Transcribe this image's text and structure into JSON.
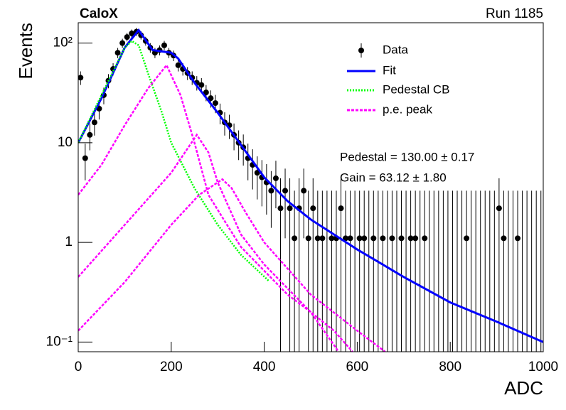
{
  "chart_data": {
    "type": "errorbar",
    "title": "CaloX",
    "subtitle": "Run 1185",
    "x_label": "ADC",
    "y_label": "Events",
    "log_y": true,
    "xlim": [
      0,
      1000
    ],
    "ylim": [
      0.08,
      160
    ],
    "xticks": [
      0,
      200,
      400,
      600,
      800,
      1000
    ],
    "yticks": [
      {
        "value": 0.1,
        "label": "10⁻¹"
      },
      1,
      10,
      {
        "value": 100,
        "label": "10²"
      }
    ],
    "legend": "upper right",
    "annotations": [
      "Pedestal = 130.00 ± 0.17",
      "Gain = 63.12 ± 1.80"
    ],
    "series": [
      {
        "name": "Data",
        "color": "#000000",
        "x": [
          5,
          15,
          25,
          35,
          45,
          55,
          65,
          75,
          85,
          95,
          105,
          115,
          125,
          135,
          145,
          155,
          165,
          175,
          185,
          195,
          205,
          215,
          225,
          235,
          245,
          255,
          265,
          275,
          285,
          295,
          305,
          315,
          325,
          335,
          345,
          355,
          365,
          375,
          385,
          395,
          405,
          415,
          425,
          435,
          445,
          455,
          465,
          475,
          485,
          495,
          505,
          515,
          525,
          535,
          545,
          555,
          565,
          575,
          585,
          595,
          605,
          615,
          625,
          635,
          645,
          655,
          665,
          675,
          685,
          695,
          705,
          715,
          725,
          735,
          745,
          755,
          765,
          775,
          785,
          795,
          805,
          815,
          825,
          835,
          845,
          855,
          865,
          875,
          885,
          895,
          905,
          915,
          925,
          935,
          945,
          955,
          965,
          975,
          985,
          995
        ],
        "values": [
          45,
          7,
          12,
          16,
          22,
          30,
          42,
          55,
          80,
          100,
          115,
          125,
          130,
          120,
          105,
          90,
          80,
          85,
          95,
          80,
          75,
          60,
          55,
          50,
          45,
          40,
          38,
          32,
          28,
          25,
          20,
          16,
          15,
          12,
          10,
          9,
          7,
          6,
          5,
          4.5,
          4,
          3.3,
          4.4,
          2.2,
          3.3,
          2.2,
          1.1,
          2.2,
          3.3,
          1.1,
          2.2,
          1.1,
          1.1,
          0,
          1.1,
          1.1,
          2.2,
          1.1,
          1.1,
          0,
          1.1,
          1.1,
          0,
          1.1,
          0,
          1.1,
          0,
          1.1,
          0,
          1.1,
          0,
          1.1,
          1.1,
          0,
          1.1,
          0,
          0,
          0,
          0,
          0,
          0,
          0,
          0,
          1.1,
          0,
          0,
          0,
          0,
          0,
          0,
          2.2,
          1.1,
          0,
          0,
          1.1,
          0,
          0,
          0,
          0,
          0
        ],
        "errors": [
          7,
          2.8,
          3.6,
          4.2,
          4.9,
          5.7,
          6.8,
          7.8,
          9.4,
          10.5,
          11.2,
          11.7,
          12,
          11.5,
          10.7,
          9.9,
          9.4,
          9.7,
          10.2,
          9.4,
          9.1,
          8.1,
          7.8,
          7.4,
          7,
          6.6,
          6.5,
          5.9,
          5.5,
          5.2,
          4.7,
          4.2,
          4.1,
          3.6,
          3.3,
          3.1,
          2.8,
          2.6,
          2.3,
          2.2,
          2.1,
          1.9,
          2.2,
          2.2,
          2.2,
          2.2,
          2.2,
          2.2,
          2.2,
          2.2,
          2.2,
          2.2,
          2.2,
          3.3,
          2.2,
          2.2,
          2.2,
          2.2,
          2.2,
          3.3,
          2.2,
          2.2,
          3.3,
          2.2,
          3.3,
          2.2,
          3.3,
          2.2,
          3.3,
          2.2,
          3.3,
          2.2,
          2.2,
          3.3,
          2.2,
          3.3,
          3.3,
          3.3,
          3.3,
          3.3,
          3.3,
          3.3,
          3.3,
          2.2,
          3.3,
          3.3,
          3.3,
          3.3,
          3.3,
          3.3,
          2.2,
          2.2,
          3.3,
          3.3,
          2.2,
          3.3,
          3.3,
          3.3,
          3.3,
          3.3
        ]
      },
      {
        "name": "Fit",
        "color": "#0000ff",
        "style": "solid",
        "x": [
          0,
          50,
          100,
          130,
          160,
          200,
          215,
          250,
          300,
          350,
          400,
          450,
          500,
          550,
          600,
          700,
          800,
          900,
          1000
        ],
        "values": [
          10,
          28,
          90,
          135,
          85,
          80,
          70,
          40,
          20,
          9.5,
          4.5,
          2.6,
          1.7,
          1.2,
          0.85,
          0.45,
          0.25,
          0.16,
          0.1
        ]
      },
      {
        "name": "Pedestal CB",
        "color": "#00ff00",
        "style": "dotted",
        "x": [
          0,
          50,
          100,
          115,
          130,
          150,
          180,
          200,
          250,
          300,
          350,
          410
        ],
        "values": [
          10,
          30,
          90,
          105,
          95,
          50,
          20,
          10,
          3.5,
          1.5,
          0.75,
          0.41
        ]
      },
      {
        "name": "p.e. peak",
        "color": "#ff00ff",
        "style": "dashed",
        "x": [
          0,
          50,
          100,
          150,
          190,
          220,
          250,
          280,
          320,
          350,
          450,
          500,
          550,
          590
        ],
        "values": [
          3,
          6,
          15,
          35,
          60,
          30,
          10,
          3,
          1.5,
          0.9,
          0.3,
          0.2,
          0.13,
          0.08
        ]
      },
      {
        "color": "#ff00ff",
        "style": "dashed",
        "x": [
          0,
          100,
          200,
          255,
          280,
          300,
          350,
          400,
          500,
          560
        ],
        "values": [
          0.45,
          1.5,
          5,
          12,
          8,
          4,
          1.2,
          0.6,
          0.2,
          0.08
        ]
      },
      {
        "color": "#ff00ff",
        "style": "dashed",
        "x": [
          0,
          100,
          200,
          260,
          310,
          330,
          360,
          400,
          500,
          600,
          660
        ],
        "values": [
          0.13,
          0.4,
          1.5,
          3,
          4.3,
          3.5,
          2,
          1,
          0.3,
          0.13,
          0.08
        ]
      }
    ]
  }
}
